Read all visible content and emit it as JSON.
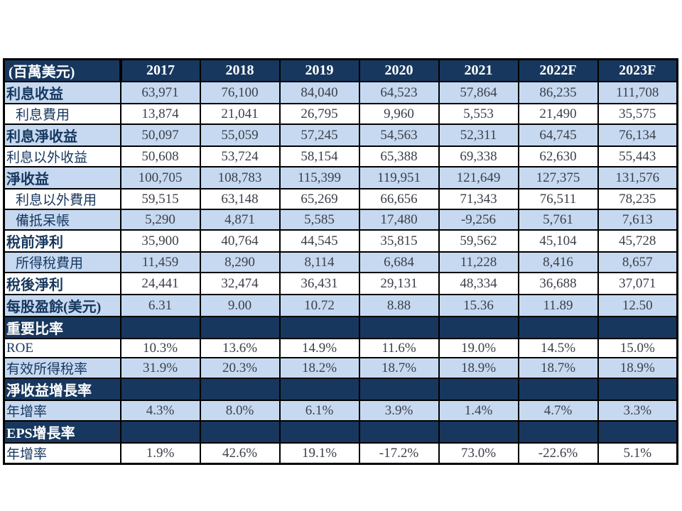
{
  "colors": {
    "navy": "#17375e",
    "light_blue": "#c6d9f1",
    "border": "#000000",
    "value_text": "#3c4049",
    "page_bg": "#ffffff"
  },
  "table": {
    "unit_label": "(百萬美元)",
    "years": [
      "2017",
      "2018",
      "2019",
      "2020",
      "2021",
      "2022F",
      "2023F"
    ],
    "rows": [
      {
        "label": "利息收益",
        "bold": true,
        "indent": false,
        "bg": "blue",
        "values": [
          "63,971",
          "76,100",
          "84,040",
          "64,523",
          "57,864",
          "86,235",
          "111,708"
        ]
      },
      {
        "label": "利息費用",
        "bold": false,
        "indent": true,
        "bg": "white",
        "values": [
          "13,874",
          "21,041",
          "26,795",
          "9,960",
          "5,553",
          "21,490",
          "35,575"
        ]
      },
      {
        "label": "利息淨收益",
        "bold": true,
        "indent": false,
        "bg": "blue",
        "values": [
          "50,097",
          "55,059",
          "57,245",
          "54,563",
          "52,311",
          "64,745",
          "76,134"
        ]
      },
      {
        "label": "利息以外收益",
        "bold": false,
        "indent": false,
        "bg": "white",
        "values": [
          "50,608",
          "53,724",
          "58,154",
          "65,388",
          "69,338",
          "62,630",
          "55,443"
        ]
      },
      {
        "label": "淨收益",
        "bold": true,
        "indent": false,
        "bg": "blue",
        "values": [
          "100,705",
          "108,783",
          "115,399",
          "119,951",
          "121,649",
          "127,375",
          "131,576"
        ]
      },
      {
        "label": "利息以外費用",
        "bold": false,
        "indent": true,
        "bg": "white",
        "values": [
          "59,515",
          "63,148",
          "65,269",
          "66,656",
          "71,343",
          "76,511",
          "78,235"
        ]
      },
      {
        "label": "備抵呆帳",
        "bold": false,
        "indent": true,
        "bg": "blue",
        "values": [
          "5,290",
          "4,871",
          "5,585",
          "17,480",
          "-9,256",
          "5,761",
          "7,613"
        ]
      },
      {
        "label": "稅前淨利",
        "bold": true,
        "indent": false,
        "bg": "white",
        "values": [
          "35,900",
          "40,764",
          "44,545",
          "35,815",
          "59,562",
          "45,104",
          "45,728"
        ]
      },
      {
        "label": "所得稅費用",
        "bold": false,
        "indent": true,
        "bg": "blue",
        "values": [
          "11,459",
          "8,290",
          "8,114",
          "6,684",
          "11,228",
          "8,416",
          "8,657"
        ]
      },
      {
        "label": "稅後淨利",
        "bold": true,
        "indent": false,
        "bg": "white",
        "values": [
          "24,441",
          "32,474",
          "36,431",
          "29,131",
          "48,334",
          "36,688",
          "37,071"
        ]
      },
      {
        "label": "每股盈餘(美元)",
        "bold": true,
        "indent": false,
        "bg": "blue",
        "values": [
          "6.31",
          "9.00",
          "10.72",
          "8.88",
          "15.36",
          "11.89",
          "12.50"
        ]
      },
      {
        "label": "重要比率",
        "bold": true,
        "indent": false,
        "bg": "navy",
        "values": [
          "",
          "",
          "",
          "",
          "",
          "",
          ""
        ]
      },
      {
        "label": "ROE",
        "bold": false,
        "indent": false,
        "bg": "white",
        "values": [
          "10.3%",
          "13.6%",
          "14.9%",
          "11.6%",
          "19.0%",
          "14.5%",
          "15.0%"
        ]
      },
      {
        "label": "有效所得稅率",
        "bold": false,
        "indent": false,
        "bg": "blue",
        "values": [
          "31.9%",
          "20.3%",
          "18.2%",
          "18.7%",
          "18.9%",
          "18.7%",
          "18.9%"
        ]
      },
      {
        "label": "淨收益增長率",
        "bold": true,
        "indent": false,
        "bg": "navy",
        "values": [
          "",
          "",
          "",
          "",
          "",
          "",
          ""
        ]
      },
      {
        "label": "年增率",
        "bold": false,
        "indent": false,
        "bg": "blue",
        "values": [
          "4.3%",
          "8.0%",
          "6.1%",
          "3.9%",
          "1.4%",
          "4.7%",
          "3.3%"
        ]
      },
      {
        "label": "EPS增長率",
        "bold": true,
        "indent": false,
        "bg": "navy",
        "values": [
          "",
          "",
          "",
          "",
          "",
          "",
          ""
        ]
      },
      {
        "label": "年增率",
        "bold": false,
        "indent": false,
        "bg": "white",
        "values": [
          "1.9%",
          "42.6%",
          "19.1%",
          "-17.2%",
          "73.0%",
          "-22.6%",
          "5.1%"
        ]
      }
    ]
  }
}
